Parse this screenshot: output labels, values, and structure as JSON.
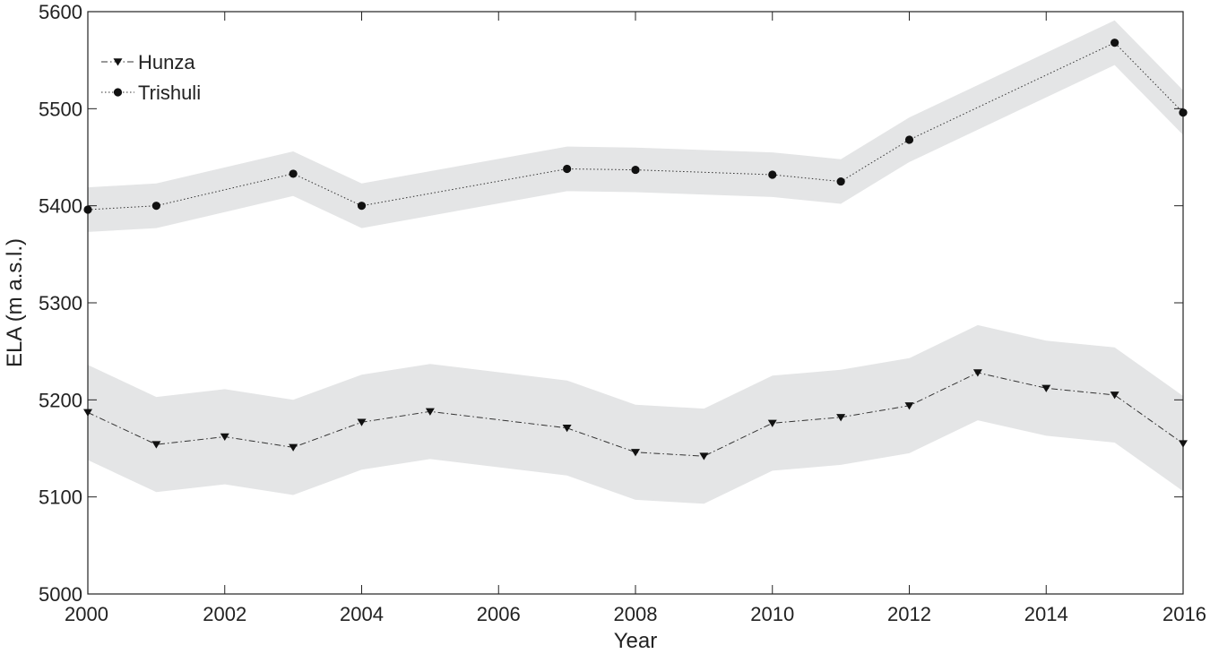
{
  "chart_data": {
    "type": "line",
    "title": "",
    "xlabel": "Year",
    "ylabel": "ELA (m a.s.l.)",
    "xlim": [
      2000,
      2016
    ],
    "ylim": [
      5000,
      5600
    ],
    "x_ticks": [
      "2000",
      "2002",
      "2004",
      "2006",
      "2008",
      "2010",
      "2012",
      "2014",
      "2016"
    ],
    "y_ticks": [
      "5000",
      "5100",
      "5200",
      "5300",
      "5400",
      "5500",
      "5600"
    ],
    "grid": false,
    "legend_position": "top-left",
    "band_color": "#e4e5e6",
    "line_color": "#333333",
    "marker_color": "#111111",
    "series": [
      {
        "name": "Hunza",
        "marker": "triangle-down",
        "line_style": "dash-dot",
        "band_halfwidth": 49,
        "points": [
          [
            2000,
            5187
          ],
          [
            2001,
            5154
          ],
          [
            2002,
            5162
          ],
          [
            2003,
            5151
          ],
          [
            2004,
            5177
          ],
          [
            2005,
            5188
          ],
          [
            2007,
            5171
          ],
          [
            2008,
            5146
          ],
          [
            2009,
            5142
          ],
          [
            2010,
            5176
          ],
          [
            2011,
            5182
          ],
          [
            2012,
            5194
          ],
          [
            2013,
            5228
          ],
          [
            2014,
            5212
          ],
          [
            2015,
            5205
          ],
          [
            2016,
            5155
          ]
        ]
      },
      {
        "name": "Trishuli",
        "marker": "circle",
        "line_style": "dotted",
        "band_halfwidth": 23,
        "points": [
          [
            2000,
            5396
          ],
          [
            2001,
            5400
          ],
          [
            2003,
            5433
          ],
          [
            2004,
            5400
          ],
          [
            2007,
            5438
          ],
          [
            2008,
            5437
          ],
          [
            2010,
            5432
          ],
          [
            2011,
            5425
          ],
          [
            2012,
            5468
          ],
          [
            2015,
            5568
          ],
          [
            2016,
            5496
          ]
        ]
      }
    ]
  }
}
